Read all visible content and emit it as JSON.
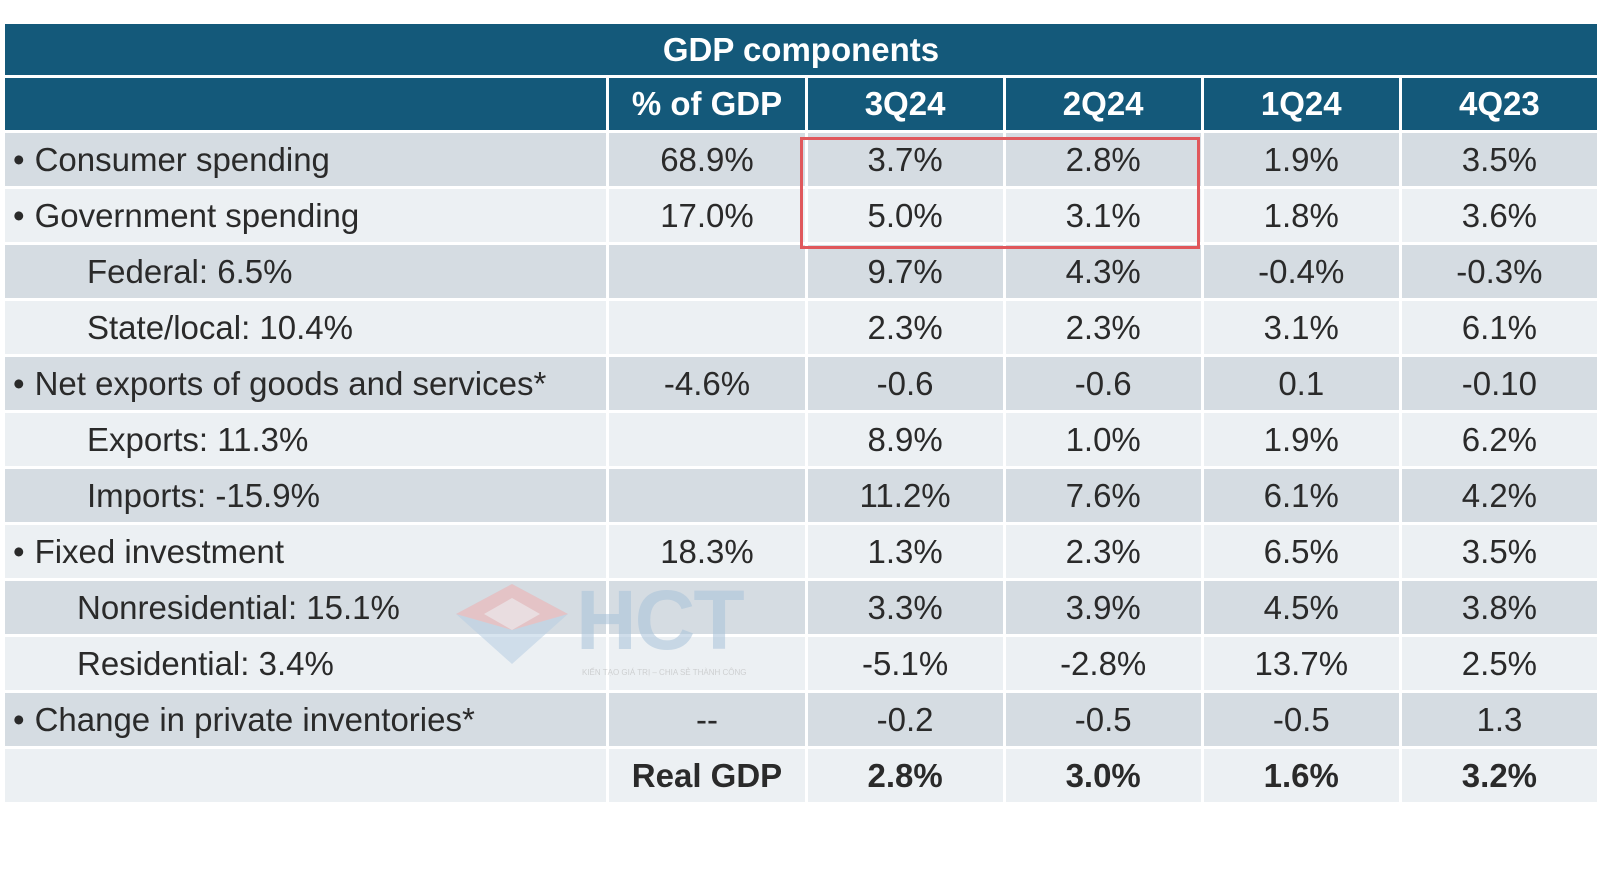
{
  "chart_data": {
    "type": "table",
    "title": "GDP components",
    "columns": [
      "",
      "% of GDP",
      "3Q24",
      "2Q24",
      "1Q24",
      "4Q23"
    ],
    "rows": [
      {
        "label": "Consumer spending",
        "bullet": true,
        "indent": 0,
        "share": "68.9%",
        "values": [
          "3.7%",
          "2.8%",
          "1.9%",
          "3.5%"
        ]
      },
      {
        "label": "Government spending",
        "bullet": true,
        "indent": 0,
        "share": "17.0%",
        "values": [
          "5.0%",
          "3.1%",
          "1.8%",
          "3.6%"
        ]
      },
      {
        "label": "Federal: 6.5%",
        "bullet": false,
        "indent": 1,
        "share": "",
        "values": [
          "9.7%",
          "4.3%",
          "-0.4%",
          "-0.3%"
        ]
      },
      {
        "label": "State/local: 10.4%",
        "bullet": false,
        "indent": 1,
        "share": "",
        "values": [
          "2.3%",
          "2.3%",
          "3.1%",
          "6.1%"
        ]
      },
      {
        "label": "Net exports of goods and services*",
        "bullet": true,
        "indent": 0,
        "share": "-4.6%",
        "values": [
          "-0.6",
          "-0.6",
          "0.1",
          "-0.10"
        ]
      },
      {
        "label": "Exports: 11.3%",
        "bullet": false,
        "indent": 1,
        "share": "",
        "values": [
          "8.9%",
          "1.0%",
          "1.9%",
          "6.2%"
        ]
      },
      {
        "label": "Imports: -15.9%",
        "bullet": false,
        "indent": 1,
        "share": "",
        "values": [
          "11.2%",
          "7.6%",
          "6.1%",
          "4.2%"
        ]
      },
      {
        "label": "Fixed investment",
        "bullet": true,
        "indent": 0,
        "share": "18.3%",
        "values": [
          "1.3%",
          "2.3%",
          "6.5%",
          "3.5%"
        ]
      },
      {
        "label": "Nonresidential: 15.1%",
        "bullet": false,
        "indent": 2,
        "share": "",
        "values": [
          "3.3%",
          "3.9%",
          "4.5%",
          "3.8%"
        ]
      },
      {
        "label": "Residential: 3.4%",
        "bullet": false,
        "indent": 2,
        "share": "",
        "values": [
          "-5.1%",
          "-2.8%",
          "13.7%",
          "2.5%"
        ]
      },
      {
        "label": "Change in private inventories*",
        "bullet": true,
        "indent": 0,
        "share": "--",
        "values": [
          "-0.2",
          "-0.5",
          "-0.5",
          "1.3"
        ]
      },
      {
        "label": "",
        "bullet": false,
        "indent": 0,
        "share": "Real GDP",
        "values": [
          "2.8%",
          "3.0%",
          "1.6%",
          "3.2%"
        ],
        "bold": true
      }
    ],
    "highlight": {
      "rows": [
        "Consumer spending",
        "Government spending"
      ],
      "columns": [
        "3Q24",
        "2Q24"
      ],
      "color": "#e0585c"
    },
    "colors": {
      "header": "#14597a",
      "row_dark": "#d5dce2",
      "row_light": "#ecf0f3"
    }
  },
  "watermark": {
    "text": "HCT",
    "tagline": "KIẾN TẠO GIÁ TRỊ – CHIA SẺ THÀNH CÔNG"
  }
}
